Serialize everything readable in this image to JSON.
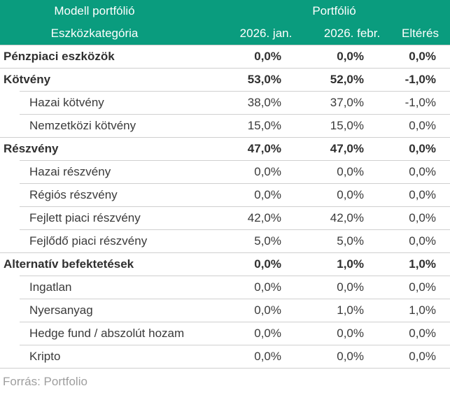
{
  "table": {
    "header": {
      "group_col1": "Modell portfólió",
      "group_col2": "Portfólió",
      "col_category": "Eszközkategória",
      "col_jan": "2026. jan.",
      "col_febr": "2026. febr.",
      "col_diff": "Eltérés"
    },
    "rows": [
      {
        "label": "Pénzpiaci eszközök",
        "jan": "0,0%",
        "febr": "0,0%",
        "diff": "0,0%"
      },
      {
        "label": "Kötvény",
        "jan": "53,0%",
        "febr": "52,0%",
        "diff": "-1,0%"
      },
      {
        "label": "Hazai kötvény",
        "jan": "38,0%",
        "febr": "37,0%",
        "diff": "-1,0%"
      },
      {
        "label": "Nemzetközi kötvény",
        "jan": "15,0%",
        "febr": "15,0%",
        "diff": "0,0%"
      },
      {
        "label": "Részvény",
        "jan": "47,0%",
        "febr": "47,0%",
        "diff": "0,0%"
      },
      {
        "label": "Hazai részvény",
        "jan": "0,0%",
        "febr": "0,0%",
        "diff": "0,0%"
      },
      {
        "label": "Régiós részvény",
        "jan": "0,0%",
        "febr": "0,0%",
        "diff": "0,0%"
      },
      {
        "label": "Fejlett piaci részvény",
        "jan": "42,0%",
        "febr": "42,0%",
        "diff": "0,0%"
      },
      {
        "label": "Fejlődő piaci részvény",
        "jan": "5,0%",
        "febr": "5,0%",
        "diff": "0,0%"
      },
      {
        "label": "Alternatív befektetések",
        "jan": "0,0%",
        "febr": "1,0%",
        "diff": "1,0%"
      },
      {
        "label": "Ingatlan",
        "jan": "0,0%",
        "febr": "0,0%",
        "diff": "0,0%"
      },
      {
        "label": "Nyersanyag",
        "jan": "0,0%",
        "febr": "1,0%",
        "diff": "1,0%"
      },
      {
        "label": "Hedge fund / abszolút hozam",
        "jan": "0,0%",
        "febr": "0,0%",
        "diff": "0,0%"
      },
      {
        "label": "Kripto",
        "jan": "0,0%",
        "febr": "0,0%",
        "diff": "0,0%"
      }
    ],
    "footer": {
      "source": "Forrás: Portfolio"
    }
  },
  "colors": {
    "header_bg": "#0a9c7e",
    "header_text": "#ffffff",
    "body_text": "#3a3a3a",
    "separator": "#cfcfcf",
    "source_text": "#9e9e9e"
  },
  "chart_data": {
    "type": "table",
    "title": "Modell portfólió",
    "group_header": "Portfólió",
    "columns": [
      "Eszközkategória",
      "2026. jan.",
      "2026. febr.",
      "Eltérés"
    ],
    "rows": [
      {
        "category": "Pénzpiaci eszközök",
        "indent": 0,
        "values_pct": [
          0.0,
          0.0,
          0.0
        ]
      },
      {
        "category": "Kötvény",
        "indent": 0,
        "values_pct": [
          53.0,
          52.0,
          -1.0
        ]
      },
      {
        "category": "Hazai kötvény",
        "indent": 1,
        "values_pct": [
          38.0,
          37.0,
          -1.0
        ]
      },
      {
        "category": "Nemzetközi kötvény",
        "indent": 1,
        "values_pct": [
          15.0,
          15.0,
          0.0
        ]
      },
      {
        "category": "Részvény",
        "indent": 0,
        "values_pct": [
          47.0,
          47.0,
          0.0
        ]
      },
      {
        "category": "Hazai részvény",
        "indent": 1,
        "values_pct": [
          0.0,
          0.0,
          0.0
        ]
      },
      {
        "category": "Régiós részvény",
        "indent": 1,
        "values_pct": [
          0.0,
          0.0,
          0.0
        ]
      },
      {
        "category": "Fejlett piaci részvény",
        "indent": 1,
        "values_pct": [
          42.0,
          42.0,
          0.0
        ]
      },
      {
        "category": "Fejlődő piaci részvény",
        "indent": 1,
        "values_pct": [
          5.0,
          5.0,
          0.0
        ]
      },
      {
        "category": "Alternatív befektetések",
        "indent": 0,
        "values_pct": [
          0.0,
          1.0,
          1.0
        ]
      },
      {
        "category": "Ingatlan",
        "indent": 1,
        "values_pct": [
          0.0,
          0.0,
          0.0
        ]
      },
      {
        "category": "Nyersanyag",
        "indent": 1,
        "values_pct": [
          0.0,
          1.0,
          1.0
        ]
      },
      {
        "category": "Hedge fund / abszolút hozam",
        "indent": 1,
        "values_pct": [
          0.0,
          0.0,
          0.0
        ]
      },
      {
        "category": "Kripto",
        "indent": 1,
        "values_pct": [
          0.0,
          0.0,
          0.0
        ]
      }
    ],
    "source": "Forrás: Portfolio"
  }
}
